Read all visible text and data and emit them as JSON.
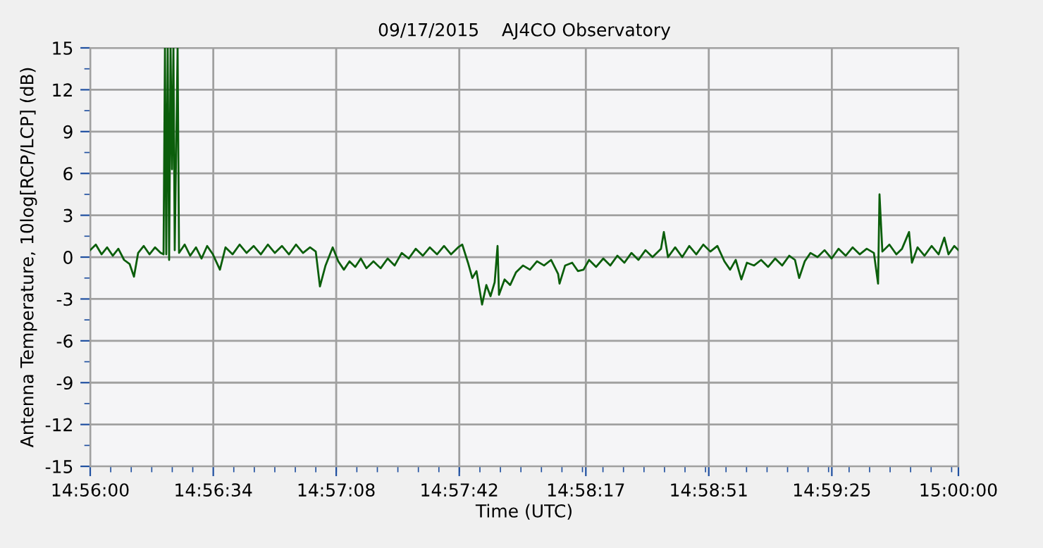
{
  "chart_data": {
    "type": "line",
    "title": "09/17/2015    AJ4CO Observatory",
    "xlabel": "Time (UTC)",
    "ylabel": "Antenna Temperature, 10log[RCP/LCP] (dB)",
    "series": [
      {
        "color": "#0b5e0b",
        "x": [
          14.93333,
          14.93376,
          14.9342,
          14.93463,
          14.93506,
          14.93549,
          14.93593,
          14.93636,
          14.93669,
          14.93701,
          14.93744,
          14.93788,
          14.93831,
          14.93874,
          14.93896,
          14.93907,
          14.93917,
          14.93928,
          14.93939,
          14.9395,
          14.93961,
          14.93972,
          14.93982,
          14.94004,
          14.94015,
          14.94058,
          14.94101,
          14.94145,
          14.94188,
          14.94231,
          14.94275,
          14.94329,
          14.94372,
          14.94426,
          14.9448,
          14.94534,
          14.94588,
          14.94643,
          14.94697,
          14.94751,
          14.94805,
          14.94859,
          14.94913,
          14.94967,
          14.95021,
          14.95065,
          14.95097,
          14.9514,
          14.95195,
          14.95238,
          14.95281,
          14.95324,
          14.95368,
          14.95411,
          14.95454,
          14.95508,
          14.95563,
          14.95617,
          14.95671,
          14.95725,
          14.95779,
          14.95833,
          14.95887,
          14.95941,
          14.95996,
          14.9605,
          14.96104,
          14.96158,
          14.9619,
          14.96234,
          14.96267,
          14.96299,
          14.96342,
          14.96375,
          14.96407,
          14.96439,
          14.96461,
          14.96472,
          14.96515,
          14.96558,
          14.96602,
          14.96656,
          14.9671,
          14.96764,
          14.96818,
          14.96872,
          14.96926,
          14.96937,
          14.9698,
          14.97034,
          14.97078,
          14.97121,
          14.97164,
          14.97218,
          14.97273,
          14.97327,
          14.97381,
          14.97435,
          14.97489,
          14.97543,
          14.97597,
          14.97651,
          14.97716,
          14.97738,
          14.9777,
          14.97825,
          14.97879,
          14.97933,
          14.97987,
          14.98041,
          14.98095,
          14.98149,
          14.98203,
          14.98247,
          14.9829,
          14.98333,
          14.98376,
          14.98431,
          14.98485,
          14.98539,
          14.98593,
          14.98647,
          14.98701,
          14.98745,
          14.98777,
          14.9882,
          14.98864,
          14.98918,
          14.98972,
          14.99026,
          14.9908,
          14.99134,
          14.99188,
          14.99242,
          14.99296,
          14.99351,
          14.99383,
          14.99394,
          14.99416,
          14.9947,
          14.99524,
          14.99567,
          14.99621,
          14.99643,
          14.99686,
          14.9974,
          14.99794,
          14.99848,
          14.99892,
          14.99924,
          14.99968,
          15.0
        ],
        "values": [
          0.5,
          0.9,
          0.2,
          0.7,
          0.1,
          0.6,
          -0.2,
          -0.5,
          -1.4,
          0.3,
          0.8,
          0.2,
          0.7,
          0.3,
          0.2,
          15,
          0.2,
          15,
          -0.2,
          15,
          6.3,
          15,
          0.5,
          15,
          0.3,
          0.9,
          0.1,
          0.7,
          -0.1,
          0.8,
          0.2,
          -0.9,
          0.7,
          0.2,
          0.9,
          0.3,
          0.8,
          0.2,
          0.9,
          0.3,
          0.8,
          0.2,
          0.9,
          0.3,
          0.7,
          0.4,
          -2.1,
          -0.6,
          0.7,
          -0.3,
          -0.9,
          -0.3,
          -0.7,
          -0.1,
          -0.8,
          -0.3,
          -0.8,
          -0.1,
          -0.6,
          0.3,
          -0.1,
          0.6,
          0.1,
          0.7,
          0.2,
          0.8,
          0.2,
          0.7,
          0.9,
          -0.4,
          -1.5,
          -1.0,
          -3.4,
          -2.0,
          -2.8,
          -1.8,
          0.8,
          -2.7,
          -1.6,
          -2.0,
          -1.1,
          -0.6,
          -0.9,
          -0.3,
          -0.6,
          -0.2,
          -1.2,
          -1.9,
          -0.6,
          -0.4,
          -1.0,
          -0.9,
          -0.2,
          -0.7,
          -0.1,
          -0.6,
          0.1,
          -0.4,
          0.3,
          -0.2,
          0.5,
          0.0,
          0.6,
          1.8,
          0.0,
          0.7,
          0.0,
          0.8,
          0.2,
          0.9,
          0.4,
          0.8,
          -0.3,
          -0.9,
          -0.2,
          -1.6,
          -0.4,
          -0.6,
          -0.2,
          -0.7,
          -0.1,
          -0.6,
          0.1,
          -0.2,
          -1.5,
          -0.3,
          0.3,
          0.0,
          0.5,
          -0.1,
          0.6,
          0.1,
          0.7,
          0.2,
          0.6,
          0.3,
          -1.9,
          4.5,
          0.4,
          0.9,
          0.2,
          0.6,
          1.8,
          -0.4,
          0.7,
          0.1,
          0.8,
          0.2,
          1.4,
          0.2,
          0.8,
          0.5
        ]
      }
    ],
    "xlim": [
      14.93333,
      15.0
    ],
    "xticks": [
      {
        "value": 14.93333,
        "label": "14:56:00"
      },
      {
        "value": 14.94278,
        "label": "14:56:34"
      },
      {
        "value": 14.95222,
        "label": "14:57:08"
      },
      {
        "value": 14.96167,
        "label": "14:57:42"
      },
      {
        "value": 14.97139,
        "label": "14:58:17"
      },
      {
        "value": 14.98083,
        "label": "14:58:51"
      },
      {
        "value": 14.99028,
        "label": "14:59:25"
      },
      {
        "value": 15.0,
        "label": "15:00:00"
      }
    ],
    "ylim": [
      -15,
      15
    ],
    "yticks": [
      -15,
      -12,
      -9,
      -6,
      -3,
      0,
      3,
      6,
      9,
      12,
      15
    ],
    "grid": true,
    "marker": "none",
    "line_style": "solid"
  }
}
